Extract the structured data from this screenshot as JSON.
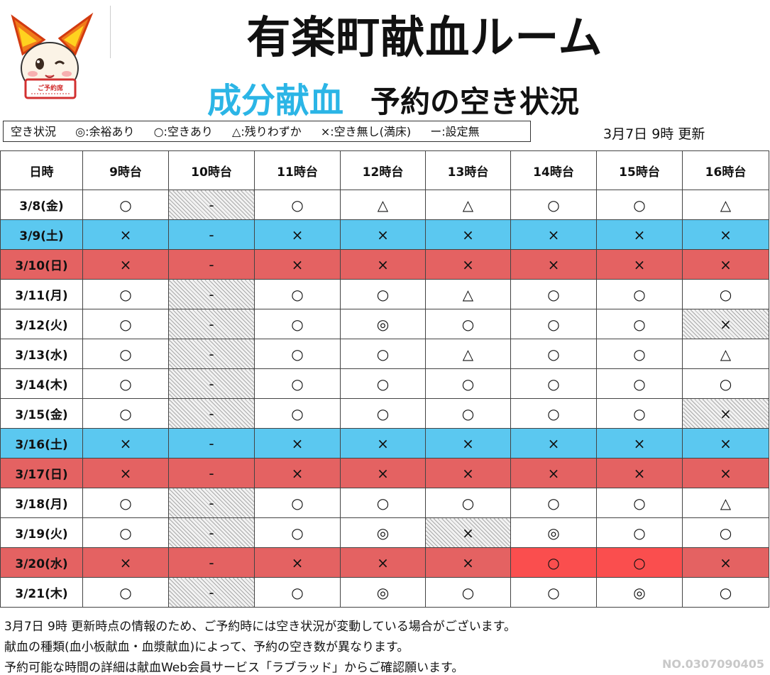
{
  "header": {
    "title": "有楽町献血ルーム",
    "subtitle_accent": "成分献血",
    "subtitle_rest": "予約の空き状況",
    "mascot_sign": "ご予約席"
  },
  "legend": {
    "items": [
      "空き状況",
      "◎:余裕あり",
      "○:空きあり",
      "△:残りわずか",
      "×:空き無し(満床)",
      "ー:設定無"
    ]
  },
  "updated": "3月7日 9時 更新",
  "table": {
    "headers": [
      "日時",
      "9時台",
      "10時台",
      "11時台",
      "12時台",
      "13時台",
      "14時台",
      "15時台",
      "16時台"
    ],
    "rows": [
      {
        "date": "3/8(金)",
        "slots": [
          "○",
          "-",
          "○",
          "△",
          "△",
          "○",
          "○",
          "△"
        ]
      },
      {
        "date": "3/9(土)",
        "slots": [
          "×",
          "-",
          "×",
          "×",
          "×",
          "×",
          "×",
          "×"
        ]
      },
      {
        "date": "3/10(日)",
        "slots": [
          "×",
          "-",
          "×",
          "×",
          "×",
          "×",
          "×",
          "×"
        ]
      },
      {
        "date": "3/11(月)",
        "slots": [
          "○",
          "-",
          "○",
          "○",
          "△",
          "○",
          "○",
          "○"
        ]
      },
      {
        "date": "3/12(火)",
        "slots": [
          "○",
          "-",
          "○",
          "◎",
          "○",
          "○",
          "○",
          "×"
        ]
      },
      {
        "date": "3/13(水)",
        "slots": [
          "○",
          "-",
          "○",
          "○",
          "△",
          "○",
          "○",
          "△"
        ]
      },
      {
        "date": "3/14(木)",
        "slots": [
          "○",
          "-",
          "○",
          "○",
          "○",
          "○",
          "○",
          "○"
        ]
      },
      {
        "date": "3/15(金)",
        "slots": [
          "○",
          "-",
          "○",
          "○",
          "○",
          "○",
          "○",
          "×"
        ]
      },
      {
        "date": "3/16(土)",
        "slots": [
          "×",
          "-",
          "×",
          "×",
          "×",
          "×",
          "×",
          "×"
        ]
      },
      {
        "date": "3/17(日)",
        "slots": [
          "×",
          "-",
          "×",
          "×",
          "×",
          "×",
          "×",
          "×"
        ]
      },
      {
        "date": "3/18(月)",
        "slots": [
          "○",
          "-",
          "○",
          "○",
          "○",
          "○",
          "○",
          "△"
        ]
      },
      {
        "date": "3/19(火)",
        "slots": [
          "○",
          "-",
          "○",
          "◎",
          "×",
          "◎",
          "○",
          "○"
        ]
      },
      {
        "date": "3/20(水)",
        "slots": [
          "×",
          "-",
          "×",
          "×",
          "×",
          "○",
          "○",
          "×"
        ]
      },
      {
        "date": "3/21(木)",
        "slots": [
          "○",
          "-",
          "○",
          "◎",
          "○",
          "○",
          "◎",
          "○"
        ]
      }
    ]
  },
  "colors": {
    "weekend_blue": "#5bc8f0",
    "holiday_red": "#e46262",
    "accent_cyan": "#2bb5e6",
    "open_red": "#fa4e4e"
  },
  "footer": {
    "line1": "3月7日 9時 更新時点の情報のため、ご予約時には空き状況が変動している場合がございます。",
    "line2": "献血の種類(血小板献血・血漿献血)によって、予約の空き数が異なります。",
    "line3": "予約可能な時間の詳細は献血Web会員サービス「ラブラッド」からご確認願います。",
    "doc_no": "NO.0307090405"
  }
}
